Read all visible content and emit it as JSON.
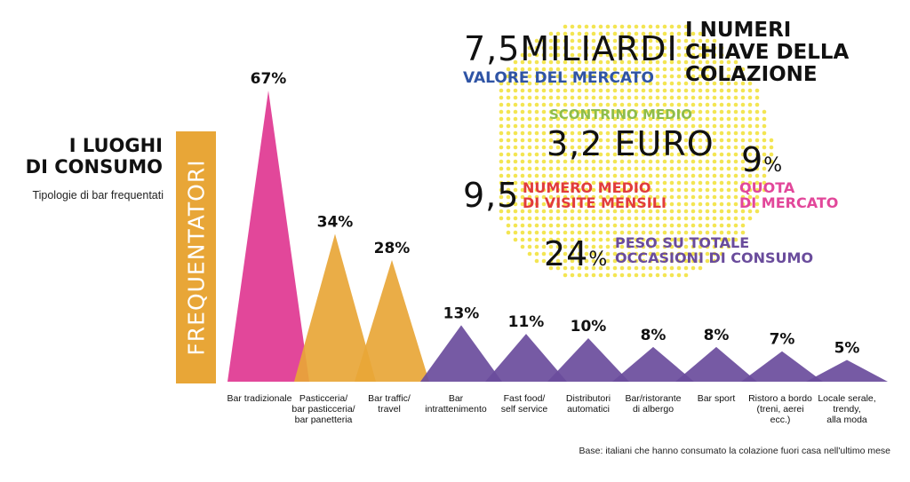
{
  "left_panel": {
    "title_line1": "I LUOGHI",
    "title_line2": "DI CONSUMO",
    "subtitle": "Tipologie di bar frequentati",
    "badge": "FREQUENTATORI"
  },
  "chart_data": {
    "type": "bar",
    "title": "I LUOGHI DI CONSUMO",
    "subtitle": "Tipologie di bar frequentati",
    "ylabel": "FREQUENTATORI",
    "unit": "%",
    "ylim": [
      0,
      67
    ],
    "categories": [
      "Bar tradizionale",
      "Pasticceria/\nbar pasticceria/\nbar panetteria",
      "Bar traffic/\ntravel",
      "Bar\nintrattenimento",
      "Fast food/\nself service",
      "Distributori\nautomatici",
      "Bar/ristorante\ndi albergo",
      "Bar sport",
      "Ristoro a bordo\n(treni, aerei\necc.)",
      "Locale serale,\ntrendy,\nalla moda"
    ],
    "values": [
      67,
      34,
      28,
      13,
      11,
      10,
      8,
      8,
      7,
      5
    ],
    "labels": [
      "67%",
      "34%",
      "28%",
      "13%",
      "11%",
      "10%",
      "8%",
      "8%",
      "7%",
      "5%"
    ],
    "colors": [
      "#e2479a",
      "#e8a637",
      "#e8a637",
      "#6a4c9c",
      "#6a4c9c",
      "#6a4c9c",
      "#6a4c9c",
      "#6a4c9c",
      "#6a4c9c",
      "#6a4c9c"
    ]
  },
  "key_numbers": {
    "title_line1": "I NUMERI",
    "title_line2": "CHIAVE DELLA",
    "title_line3": "COLAZIONE",
    "market_value": "7,5MILIARDI",
    "market_label": "VALORE DEL MERCATO",
    "receipt_label": "SCONTRINO MEDIO",
    "receipt_value": "3,2 EURO",
    "share_value": "9",
    "share_unit": "%",
    "share_label_1": "QUOTA",
    "share_label_2": "DI MERCATO",
    "visits_value": "9,5",
    "visits_label_1": "NUMERO MEDIO",
    "visits_label_2": "DI VISITE MENSILI",
    "weight_value": "24",
    "weight_unit": "%",
    "weight_label_1": "PESO SU TOTALE",
    "weight_label_2": "OCCASIONI DI CONSUMO"
  },
  "footnote": "Base: italiani che hanno consumato la colazione fuori casa nell'ultimo mese",
  "colors": {
    "pink": "#e2479a",
    "orange": "#e8a637",
    "purple": "#6a4c9c",
    "blue": "#2f54a5",
    "green": "#8fbd4a",
    "red": "#e23c3c",
    "dots": "#f3e552"
  }
}
